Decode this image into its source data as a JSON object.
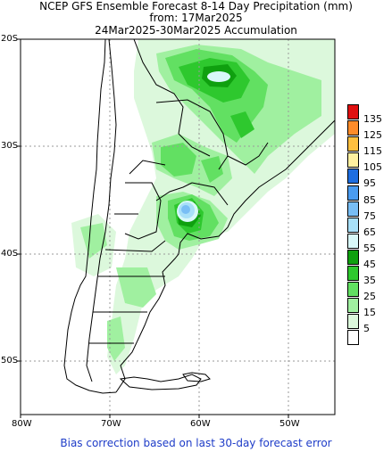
{
  "title": {
    "line1": "NCEP GFS Ensemble Forecast 8-14 Day Precipitation (mm)",
    "line2": "from: 17Mar2025",
    "line3": "24Mar2025-30Mar2025 Accumulation"
  },
  "axes": {
    "lat_labels": [
      "20S",
      "30S",
      "40S",
      "50S"
    ],
    "lon_labels": [
      "80W",
      "70W",
      "60W",
      "50W"
    ]
  },
  "legend": {
    "labels": [
      "135",
      "125",
      "115",
      "105",
      "95",
      "85",
      "75",
      "65",
      "55",
      "45",
      "35",
      "25",
      "15",
      "5"
    ],
    "colors": [
      "#e01010",
      "#ff8c2a",
      "#ffc040",
      "#fff0a0",
      "#1e6ee0",
      "#4a9cf0",
      "#78bef5",
      "#a8e0f8",
      "#d8f8f8",
      "#0fa00f",
      "#2ec82e",
      "#62e062",
      "#a0f0a0",
      "#dcf8dc",
      "#ffffff"
    ]
  },
  "footer": "Bias correction based on last 30-day forecast error"
}
